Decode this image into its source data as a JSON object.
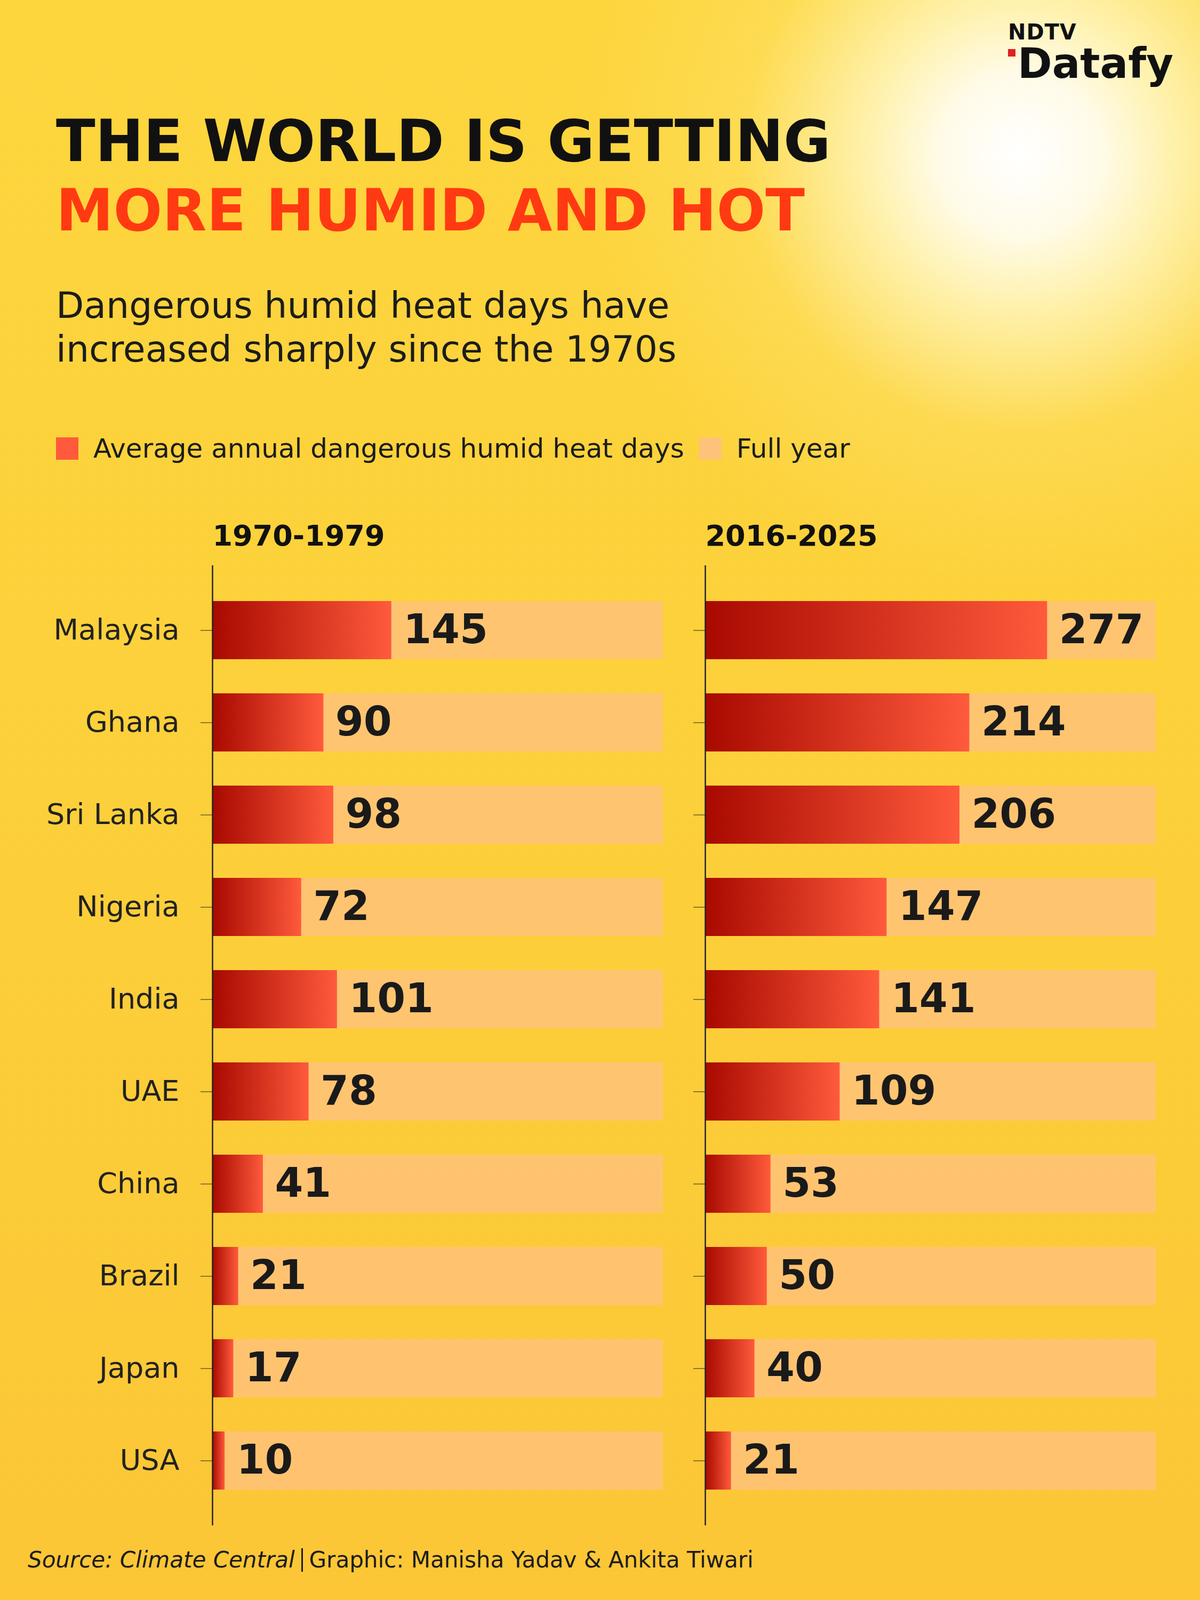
{
  "header": {
    "brand_top": "NDTV",
    "brand": "Datafy",
    "title": "THE WORLD IS GETTING",
    "title_highlight": "MORE HUMID AND HOT",
    "subtitle": "Dangerous humid heat days have increased sharply since the 1970s"
  },
  "chart_data": [
    {
      "type": "bar",
      "orientation": "horizontal",
      "title": "1970-1979",
      "categories": [
        "Malaysia",
        "Ghana",
        "Sri Lanka",
        "Nigeria",
        "India",
        "UAE",
        "China",
        "Brazil",
        "Japan",
        "USA"
      ],
      "series": [
        {
          "name": "Average annual dangerous humid heat days",
          "color": "#ff5a3c",
          "values": [
            145,
            90,
            98,
            72,
            101,
            78,
            41,
            21,
            17,
            10
          ],
          "data_labels": true
        },
        {
          "name": "Full year",
          "color": "#ffc27a",
          "values": [
            365,
            365,
            365,
            365,
            365,
            365,
            365,
            365,
            365,
            365
          ],
          "data_labels": false
        }
      ],
      "xlim": [
        0,
        365
      ],
      "legend": "top-left",
      "tick_labels": "y"
    },
    {
      "type": "bar",
      "orientation": "horizontal",
      "title": "2016-2025",
      "categories": [
        "Malaysia",
        "Ghana",
        "Sri Lanka",
        "Nigeria",
        "India",
        "UAE",
        "China",
        "Brazil",
        "Japan",
        "USA"
      ],
      "series": [
        {
          "name": "Average annual dangerous humid heat days",
          "color": "#ff5a3c",
          "values": [
            277,
            214,
            206,
            147,
            141,
            109,
            53,
            50,
            40,
            21
          ],
          "data_labels": true
        },
        {
          "name": "Full year",
          "color": "#ffc27a",
          "values": [
            365,
            365,
            365,
            365,
            365,
            365,
            365,
            365,
            365,
            365
          ],
          "data_labels": false
        }
      ],
      "xlim": [
        0,
        365
      ],
      "tick_labels": false
    }
  ],
  "footer": {
    "source": "Source: Climate Central",
    "credit": "Graphic: Manisha Yadav & Ankita Tiwari"
  }
}
